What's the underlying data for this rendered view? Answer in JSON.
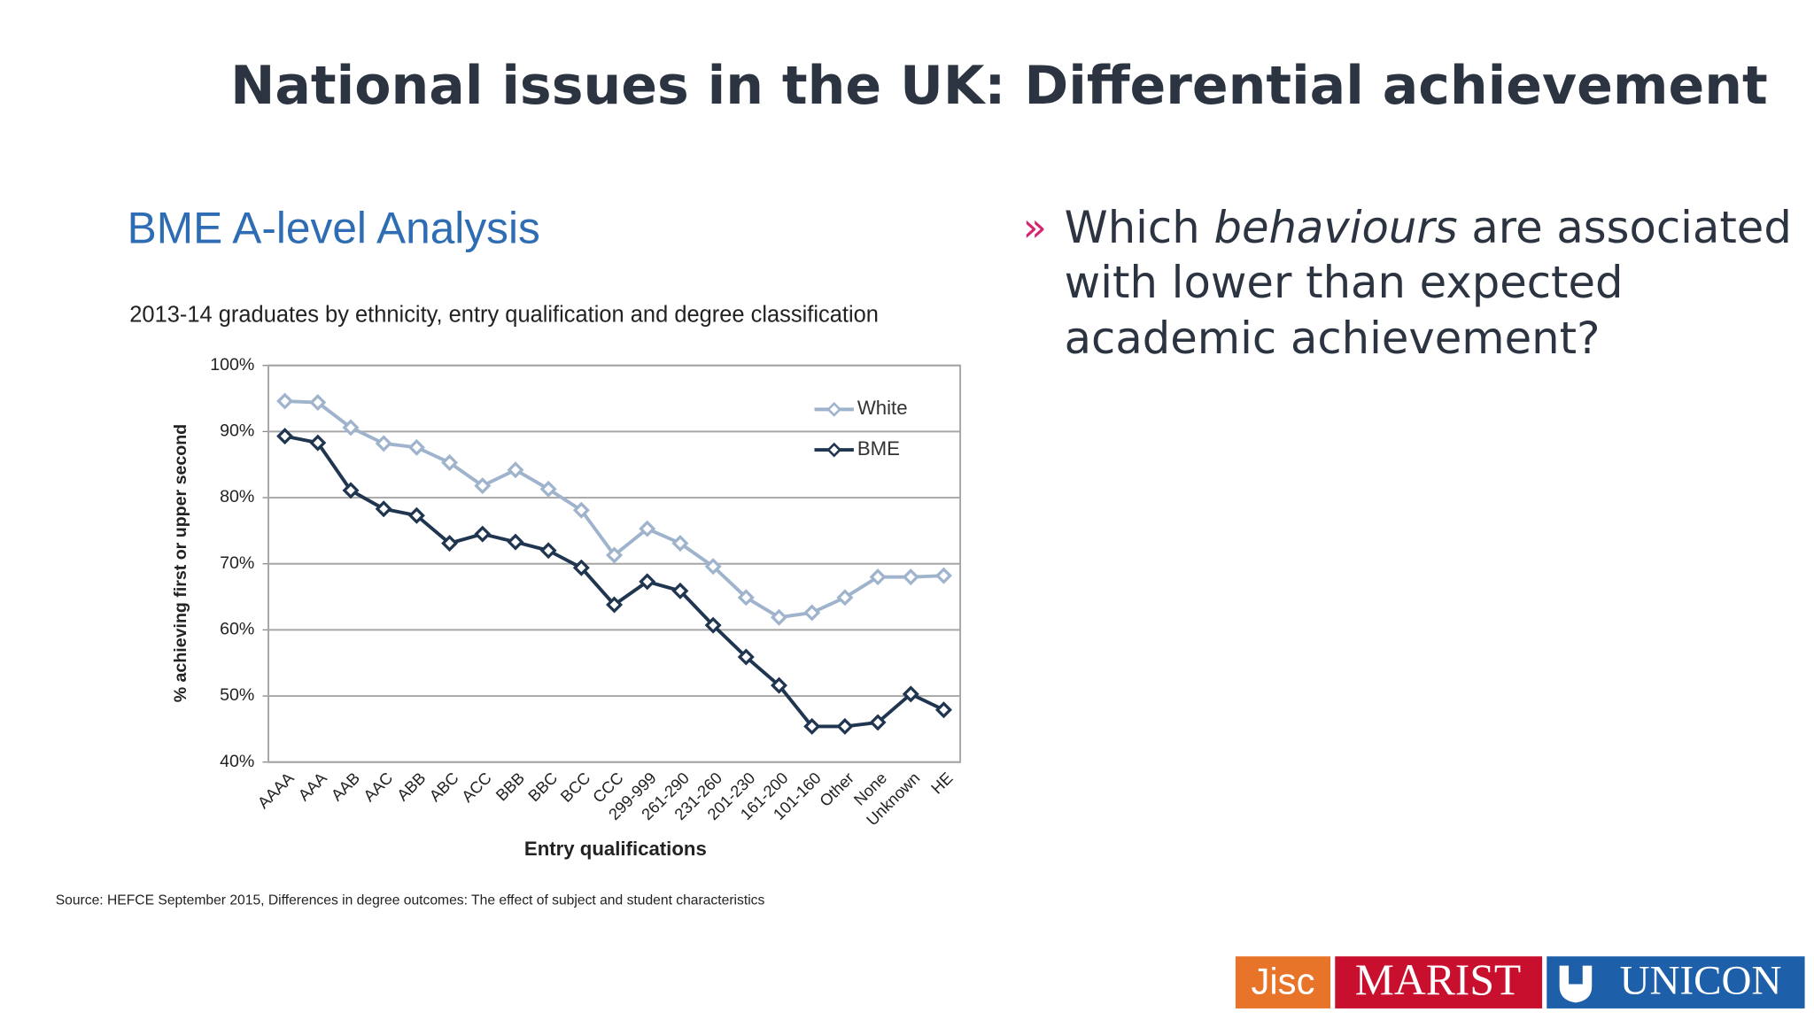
{
  "slide": {
    "title": "National issues in the UK: Differential achievement",
    "bullet": {
      "marker": "»",
      "lines": [
        [
          "Which",
          "behaviours",
          "are associated"
        ],
        [
          "with lower than expected"
        ],
        [
          "academic achievement?"
        ]
      ]
    },
    "logos": [
      "Jisc",
      "MARIST",
      "UNICON"
    ]
  },
  "chart_data": {
    "type": "line",
    "heading": "BME A-level Analysis",
    "title": "2013-14 graduates by ethnicity, entry qualification and degree classification",
    "x_label": "Entry qualifications",
    "y_label": "% achieving first or upper second",
    "source": "Source: HEFCE September 2015, Differences in degree outcomes: The effect of subject and student characteristics",
    "categories": [
      "AAAA",
      "AAA",
      "AAB",
      "AAC",
      "ABB",
      "ABC",
      "ACC",
      "BBB",
      "BBC",
      "BCC",
      "CCC",
      "299-999",
      "261-290",
      "231-260",
      "201-230",
      "161-200",
      "101-160",
      "Other",
      "None",
      "Unknown",
      "HE"
    ],
    "series": [
      {
        "name": "White",
        "color": "#9fb4cc",
        "values": [
          94.6,
          94.4,
          90.6,
          88.2,
          87.6,
          85.3,
          81.8,
          84.2,
          81.3,
          78.1,
          71.3,
          75.3,
          73.1,
          69.6,
          64.9,
          61.9,
          62.6,
          64.9,
          68.0,
          68.0,
          68.2
        ]
      },
      {
        "name": "BME",
        "color": "#1f3550",
        "values": [
          89.3,
          88.3,
          81.1,
          78.3,
          77.3,
          73.1,
          74.5,
          73.3,
          72.0,
          69.4,
          63.8,
          67.3,
          65.9,
          60.7,
          55.9,
          51.6,
          45.4,
          45.4,
          46.0,
          50.3,
          47.9
        ]
      }
    ],
    "ylim": [
      40,
      100
    ],
    "yticks": [
      {
        "value": 40,
        "label": "40%"
      },
      {
        "value": 50,
        "label": "50%"
      },
      {
        "value": 60,
        "label": "60%"
      },
      {
        "value": 70,
        "label": "70%"
      },
      {
        "value": 80,
        "label": "80%"
      },
      {
        "value": 90,
        "label": "90%"
      },
      {
        "value": 100,
        "label": "100%"
      }
    ],
    "grid": true,
    "legend": "upper right"
  }
}
